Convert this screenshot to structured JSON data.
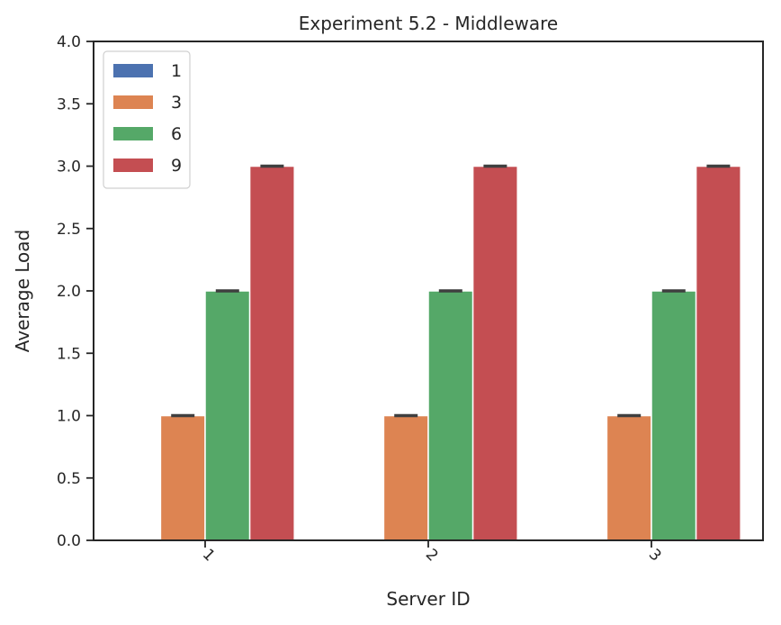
{
  "chart_data": {
    "type": "bar",
    "title": "Experiment 5.2 - Middleware",
    "xlabel": "Server ID",
    "ylabel": "Average Load",
    "categories": [
      "1",
      "2",
      "3"
    ],
    "series": [
      {
        "name": "1",
        "color": "#4c72b0",
        "values": [
          0.0,
          0.0,
          0.0
        ],
        "error": [
          0.0,
          0.0,
          0.0
        ]
      },
      {
        "name": "3",
        "color": "#dd8452",
        "values": [
          1.0,
          1.0,
          1.0
        ],
        "error": [
          0.01,
          0.01,
          0.01
        ]
      },
      {
        "name": "6",
        "color": "#55a868",
        "values": [
          2.0,
          2.0,
          2.0
        ],
        "error": [
          0.01,
          0.01,
          0.01
        ]
      },
      {
        "name": "9",
        "color": "#c44e52",
        "values": [
          3.0,
          3.0,
          3.0
        ],
        "error": [
          0.01,
          0.01,
          0.01
        ]
      }
    ],
    "ylim": [
      0,
      4
    ],
    "yticks": [
      "0.0",
      "0.5",
      "1.0",
      "1.5",
      "2.0",
      "2.5",
      "3.0",
      "3.5",
      "4.0"
    ],
    "xtick_rotation": "45",
    "grid": false,
    "legend_position": "upper left"
  }
}
